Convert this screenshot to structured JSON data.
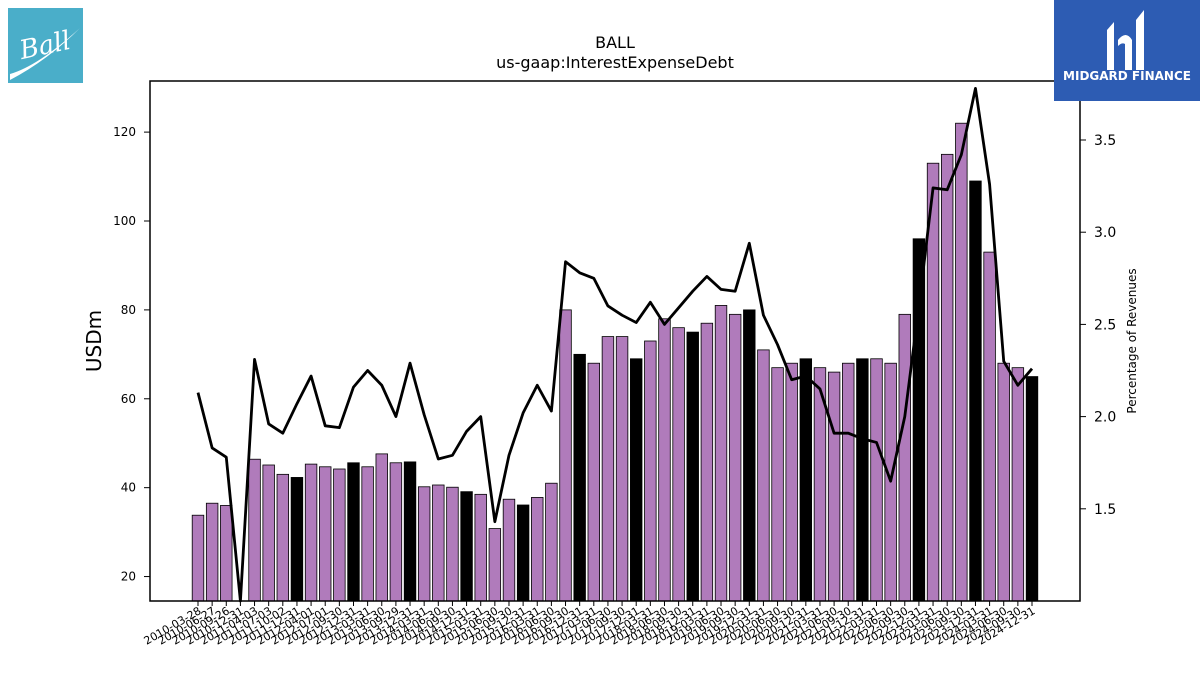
{
  "colors": {
    "bar_default": "#b07bbb",
    "bar_highlight": "#000000",
    "line": "#000000",
    "ball_logo_bg": "#4aaec9",
    "midgard_logo_bg": "#2d5cb3"
  },
  "logos": {
    "ball": {
      "text": "Ball"
    },
    "midgard": {
      "text": "MIDGARD FINANCE"
    }
  },
  "chart_data": {
    "type": "bar",
    "title": "BALL",
    "subtitle": "us-gaap:InterestExpenseDebt",
    "ylabel": "USDm",
    "y2label": "Percentage of Revenues",
    "ylim": [
      14.5,
      131.5
    ],
    "y2lim": [
      1.0,
      3.82
    ],
    "yticks": [
      20,
      40,
      60,
      80,
      100,
      120
    ],
    "y2ticks": [
      1.5,
      2.0,
      2.5,
      3.0,
      3.5
    ],
    "grid": false,
    "categories": [
      "2010-03-28",
      "2010-06-27",
      "2010-09-26",
      "2010-12-31",
      "2011-04-03",
      "2011-07-03",
      "2011-10-02",
      "2011-12-31",
      "2012-04-01",
      "2012-07-01",
      "2012-09-30",
      "2012-12-31",
      "2013-03-31",
      "2013-06-30",
      "2013-09-29",
      "2013-12-31",
      "2014-03-31",
      "2014-06-30",
      "2014-09-30",
      "2014-12-31",
      "2015-03-31",
      "2015-06-30",
      "2015-09-30",
      "2015-12-31",
      "2016-03-31",
      "2016-06-30",
      "2016-09-30",
      "2016-12-31",
      "2017-03-31",
      "2017-06-30",
      "2017-09-30",
      "2017-12-31",
      "2018-03-31",
      "2018-06-30",
      "2018-09-30",
      "2018-12-31",
      "2019-03-31",
      "2019-06-30",
      "2019-09-30",
      "2019-12-31",
      "2020-03-31",
      "2020-06-30",
      "2020-09-30",
      "2020-12-31",
      "2021-03-31",
      "2021-06-30",
      "2021-09-30",
      "2021-12-31",
      "2022-03-31",
      "2022-06-30",
      "2022-09-30",
      "2022-12-31",
      "2023-03-31",
      "2023-06-30",
      "2023-09-30",
      "2023-12-31",
      "2024-03-31",
      "2024-06-30",
      "2024-09-30",
      "2024-12-31"
    ],
    "xtick_labels": [
      "2010-03-28",
      "2010-06-27",
      "2010-09-26",
      "2010-12-31",
      "2011-04-03",
      "2011-07-03",
      "2011-10-02",
      "2011-12-31",
      "2012-04-01",
      "2012-07-01",
      "2012-09-30",
      "2012-12-31",
      "2013-03-31",
      "2013-06-30",
      "2013-09-29",
      "2013-12-31",
      "2014-03-31",
      "2014-06-30",
      "2014-09-30",
      "2014-12-31",
      "2015-03-31",
      "2015-06-30",
      "2015-09-30",
      "2015-12-31",
      "2016-03-31",
      "2016-06-30",
      "2016-09-30",
      "2016-12-31",
      "2017-03-31",
      "2017-06-30",
      "2017-09-30",
      "2017-12-31",
      "2018-03-31",
      "2018-06-30",
      "2018-09-30",
      "2018-12-31",
      "2019-03-31",
      "2019-06-30",
      "2019-09-30",
      "2019-12-31",
      "2020-03-31",
      "2020-06-30",
      "2020-09-30",
      "2020-12-31",
      "2021-03-31",
      "2021-06-30",
      "2021-09-30",
      "2021-12-31",
      "2022-03-31",
      "2022-06-30",
      "2022-09-30",
      "2022-12-31",
      "2023-03-31",
      "2023-06-30",
      "2023-09-30",
      "2023-12-31",
      "2024-03-31",
      "2024-06-30",
      "2024-09-30",
      "2024-12-31"
    ],
    "series": [
      {
        "type": "bar",
        "axis": "left",
        "values": [
          33.8,
          36.5,
          36.0,
          null,
          46.4,
          45.1,
          43.0,
          42.3,
          45.3,
          44.7,
          44.2,
          45.6,
          44.7,
          47.6,
          45.6,
          45.8,
          40.2,
          40.6,
          40.1,
          39.1,
          38.5,
          30.8,
          37.4,
          36.1,
          37.8,
          41.0,
          80.0,
          70.0,
          68.0,
          74.0,
          74.0,
          69.0,
          73.0,
          78.0,
          76.0,
          75.0,
          77.0,
          81.0,
          79.0,
          80.0,
          71.0,
          67.0,
          68.0,
          69.0,
          67.0,
          66.0,
          68.0,
          69.0,
          69.0,
          68.0,
          79.0,
          96.0,
          113.0,
          115.0,
          122.0,
          109.0,
          93.0,
          68.0,
          67.0,
          65.0
        ],
        "highlight": [
          false,
          false,
          false,
          false,
          false,
          false,
          false,
          true,
          false,
          false,
          false,
          true,
          false,
          false,
          false,
          true,
          false,
          false,
          false,
          true,
          false,
          false,
          false,
          true,
          false,
          false,
          false,
          true,
          false,
          false,
          false,
          true,
          false,
          false,
          false,
          true,
          false,
          false,
          false,
          true,
          false,
          false,
          false,
          true,
          false,
          false,
          false,
          true,
          false,
          false,
          false,
          true,
          false,
          false,
          false,
          true,
          false,
          false,
          false,
          true
        ]
      },
      {
        "type": "line",
        "axis": "right",
        "values": [
          2.13,
          1.83,
          1.78,
          0.6,
          2.31,
          1.96,
          1.91,
          2.07,
          2.22,
          1.95,
          1.94,
          2.16,
          2.25,
          2.17,
          2.0,
          2.29,
          2.01,
          1.77,
          1.79,
          1.92,
          2.0,
          1.43,
          1.79,
          2.02,
          2.17,
          2.03,
          2.84,
          2.78,
          2.75,
          2.6,
          2.55,
          2.51,
          2.62,
          2.5,
          2.59,
          2.68,
          2.76,
          2.69,
          2.68,
          2.94,
          2.55,
          2.39,
          2.2,
          2.22,
          2.15,
          1.91,
          1.91,
          1.88,
          1.86,
          1.65,
          2.0,
          2.6,
          3.24,
          3.23,
          3.42,
          3.78,
          3.26,
          2.3,
          2.17,
          2.26
        ]
      }
    ]
  }
}
